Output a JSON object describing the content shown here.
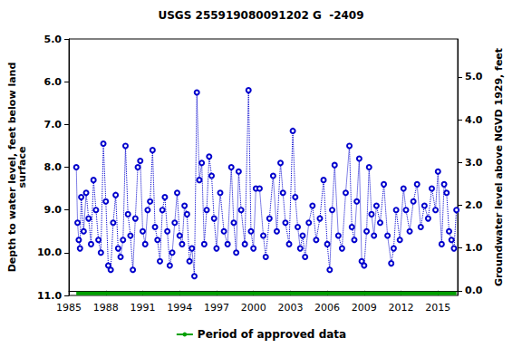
{
  "chart_data": {
    "type": "scatter",
    "title": "USGS 255919080091202 G  -2409",
    "y_label": "Depth to water level, feet below land\nsurface",
    "y2_label": "Groundwater level above NGVD 1929, feet",
    "xlim": [
      1985,
      2016.6
    ],
    "xticks": [
      1985,
      1988,
      1991,
      1994,
      1997,
      2000,
      2003,
      2006,
      2009,
      2012,
      2015
    ],
    "ylim": [
      5,
      11
    ],
    "yticks": [
      {
        "value": 5,
        "label": "5.0"
      },
      {
        "value": 6,
        "label": "6.0"
      },
      {
        "value": 7,
        "label": "7.0"
      },
      {
        "value": 8,
        "label": "8.0"
      },
      {
        "value": 9,
        "label": "9.0"
      },
      {
        "value": 10,
        "label": "10.0"
      },
      {
        "value": 11,
        "label": "11.0"
      }
    ],
    "y2lim": [
      -0.11,
      5.89
    ],
    "y2ticks": [
      {
        "value": 0,
        "label": "0.0"
      },
      {
        "value": 1,
        "label": "1.0"
      },
      {
        "value": 2,
        "label": "2.0"
      },
      {
        "value": 3,
        "label": "3.0"
      },
      {
        "value": 4,
        "label": "4.0"
      },
      {
        "value": 5,
        "label": "5.0"
      }
    ],
    "grid": false,
    "legend": "bottom",
    "series": [
      {
        "type": "scatter",
        "color": "#0000cc",
        "marker": "circle",
        "line_style": "dotted",
        "x": [
          1985.6,
          1985.7,
          1985.8,
          1985.9,
          1986.0,
          1986.2,
          1986.4,
          1986.6,
          1986.8,
          1987.0,
          1987.2,
          1987.4,
          1987.6,
          1987.8,
          1988.0,
          1988.2,
          1988.4,
          1988.6,
          1988.8,
          1989.0,
          1989.2,
          1989.4,
          1989.6,
          1989.8,
          1990.0,
          1990.2,
          1990.4,
          1990.6,
          1990.8,
          1991.0,
          1991.2,
          1991.4,
          1991.6,
          1991.8,
          1992.0,
          1992.2,
          1992.4,
          1992.6,
          1992.8,
          1993.0,
          1993.2,
          1993.4,
          1993.6,
          1993.8,
          1994.0,
          1994.2,
          1994.4,
          1994.6,
          1994.8,
          1995.0,
          1995.2,
          1995.4,
          1995.6,
          1995.8,
          1996.0,
          1996.2,
          1996.4,
          1996.6,
          1996.8,
          1997.0,
          1997.3,
          1997.6,
          1997.9,
          1998.2,
          1998.4,
          1998.6,
          1998.8,
          1999.0,
          1999.3,
          1999.6,
          1999.8,
          2000.0,
          2000.2,
          2000.5,
          2000.8,
          2001.0,
          2001.3,
          2001.6,
          2001.9,
          2002.2,
          2002.4,
          2002.6,
          2002.9,
          2003.2,
          2003.4,
          2003.6,
          2003.8,
          2004.0,
          2004.2,
          2004.5,
          2004.8,
          2005.1,
          2005.4,
          2005.7,
          2006.0,
          2006.2,
          2006.4,
          2006.6,
          2006.9,
          2007.2,
          2007.5,
          2007.8,
          2008.0,
          2008.2,
          2008.4,
          2008.6,
          2008.8,
          2009.0,
          2009.2,
          2009.4,
          2009.6,
          2009.8,
          2010.0,
          2010.3,
          2010.6,
          2010.9,
          2011.2,
          2011.4,
          2011.6,
          2011.9,
          2012.2,
          2012.4,
          2012.7,
          2013.0,
          2013.3,
          2013.6,
          2013.9,
          2014.2,
          2014.5,
          2014.8,
          2015.0,
          2015.3,
          2015.5,
          2015.7,
          2015.9,
          2016.1,
          2016.3,
          2016.5
        ],
        "values": [
          8.0,
          9.3,
          9.7,
          9.9,
          8.7,
          9.5,
          8.6,
          9.2,
          9.8,
          8.3,
          9.0,
          9.7,
          10.0,
          7.45,
          8.8,
          10.3,
          10.4,
          9.3,
          8.65,
          9.9,
          10.1,
          9.7,
          7.5,
          9.1,
          9.6,
          10.4,
          9.2,
          8.0,
          7.85,
          9.5,
          9.8,
          9.0,
          8.8,
          7.6,
          9.4,
          9.7,
          10.2,
          9.0,
          8.7,
          9.5,
          10.3,
          10.0,
          9.3,
          8.6,
          9.6,
          9.8,
          8.9,
          9.1,
          10.2,
          9.9,
          10.55,
          6.25,
          8.3,
          7.9,
          9.8,
          9.0,
          7.75,
          8.2,
          9.2,
          9.9,
          8.6,
          9.5,
          9.8,
          8.0,
          9.3,
          10.0,
          8.1,
          9.0,
          9.8,
          6.2,
          9.5,
          9.9,
          8.5,
          8.5,
          9.6,
          10.1,
          9.2,
          8.2,
          9.5,
          7.9,
          8.6,
          9.3,
          9.8,
          7.15,
          8.7,
          9.4,
          9.9,
          9.6,
          10.1,
          9.3,
          8.9,
          9.7,
          9.2,
          8.3,
          9.8,
          10.4,
          9.0,
          7.95,
          9.6,
          9.9,
          8.6,
          7.5,
          9.4,
          9.7,
          8.8,
          7.8,
          10.2,
          10.3,
          9.5,
          8.0,
          9.1,
          9.6,
          8.9,
          9.3,
          8.4,
          9.6,
          10.25,
          9.9,
          9.0,
          9.7,
          8.5,
          9.0,
          9.5,
          8.8,
          8.4,
          9.4,
          8.9,
          9.2,
          8.5,
          9.0,
          8.1,
          9.8,
          8.4,
          8.6,
          9.5,
          9.7,
          9.9,
          9.0
        ]
      },
      {
        "type": "line",
        "name": "Period of approved data",
        "color": "#00a000",
        "x": [
          1985.6,
          2016.5
        ],
        "values": [
          10.95,
          10.95
        ]
      }
    ]
  }
}
